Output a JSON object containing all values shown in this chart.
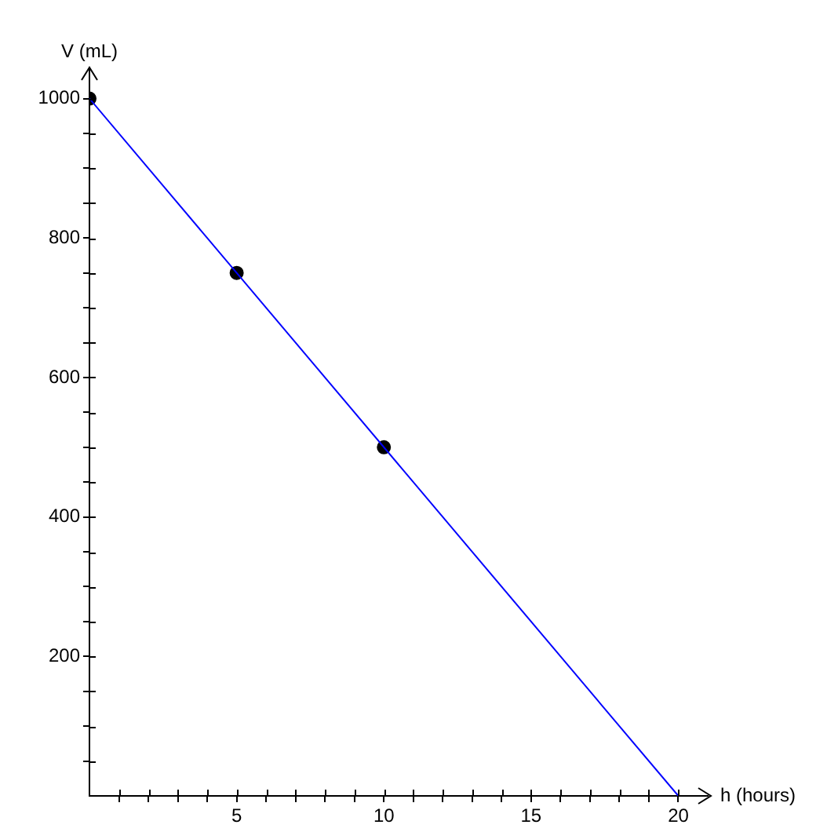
{
  "chart_data": {
    "type": "line",
    "xlabel": "h (hours)",
    "ylabel": "V (mL)",
    "xlim": [
      0,
      21
    ],
    "ylim": [
      0,
      1040
    ],
    "xticks": [
      {
        "value": 1,
        "label": null
      },
      {
        "value": 2,
        "label": null
      },
      {
        "value": 3,
        "label": null
      },
      {
        "value": 4,
        "label": null
      },
      5,
      {
        "value": 6,
        "label": null
      },
      {
        "value": 7,
        "label": null
      },
      {
        "value": 8,
        "label": null
      },
      {
        "value": 9,
        "label": null
      },
      10,
      {
        "value": 11,
        "label": null
      },
      {
        "value": 12,
        "label": null
      },
      {
        "value": 13,
        "label": null
      },
      {
        "value": 14,
        "label": null
      },
      15,
      {
        "value": 16,
        "label": null
      },
      {
        "value": 17,
        "label": null
      },
      {
        "value": 18,
        "label": null
      },
      {
        "value": 19,
        "label": null
      },
      20
    ],
    "yticks": [
      {
        "value": 50,
        "label": null
      },
      {
        "value": 100,
        "label": null
      },
      {
        "value": 150,
        "label": null
      },
      200,
      {
        "value": 250,
        "label": null
      },
      {
        "value": 300,
        "label": null
      },
      {
        "value": 350,
        "label": null
      },
      400,
      {
        "value": 450,
        "label": null
      },
      {
        "value": 500,
        "label": null
      },
      {
        "value": 550,
        "label": null
      },
      600,
      {
        "value": 650,
        "label": null
      },
      {
        "value": 700,
        "label": null
      },
      {
        "value": 750,
        "label": null
      },
      800,
      {
        "value": 850,
        "label": null
      },
      {
        "value": 900,
        "label": null
      },
      {
        "value": 950,
        "label": null
      },
      1000
    ],
    "series": [
      {
        "color": "#0000ff",
        "x": [
          0,
          20
        ],
        "values": [
          1000,
          0
        ],
        "marker": "none"
      },
      {
        "type": "scatter",
        "color": "#000000",
        "x": [
          0,
          5,
          10
        ],
        "values": [
          1000,
          750,
          500
        ],
        "marker": "circle"
      }
    ],
    "grid": false,
    "legend": false
  }
}
